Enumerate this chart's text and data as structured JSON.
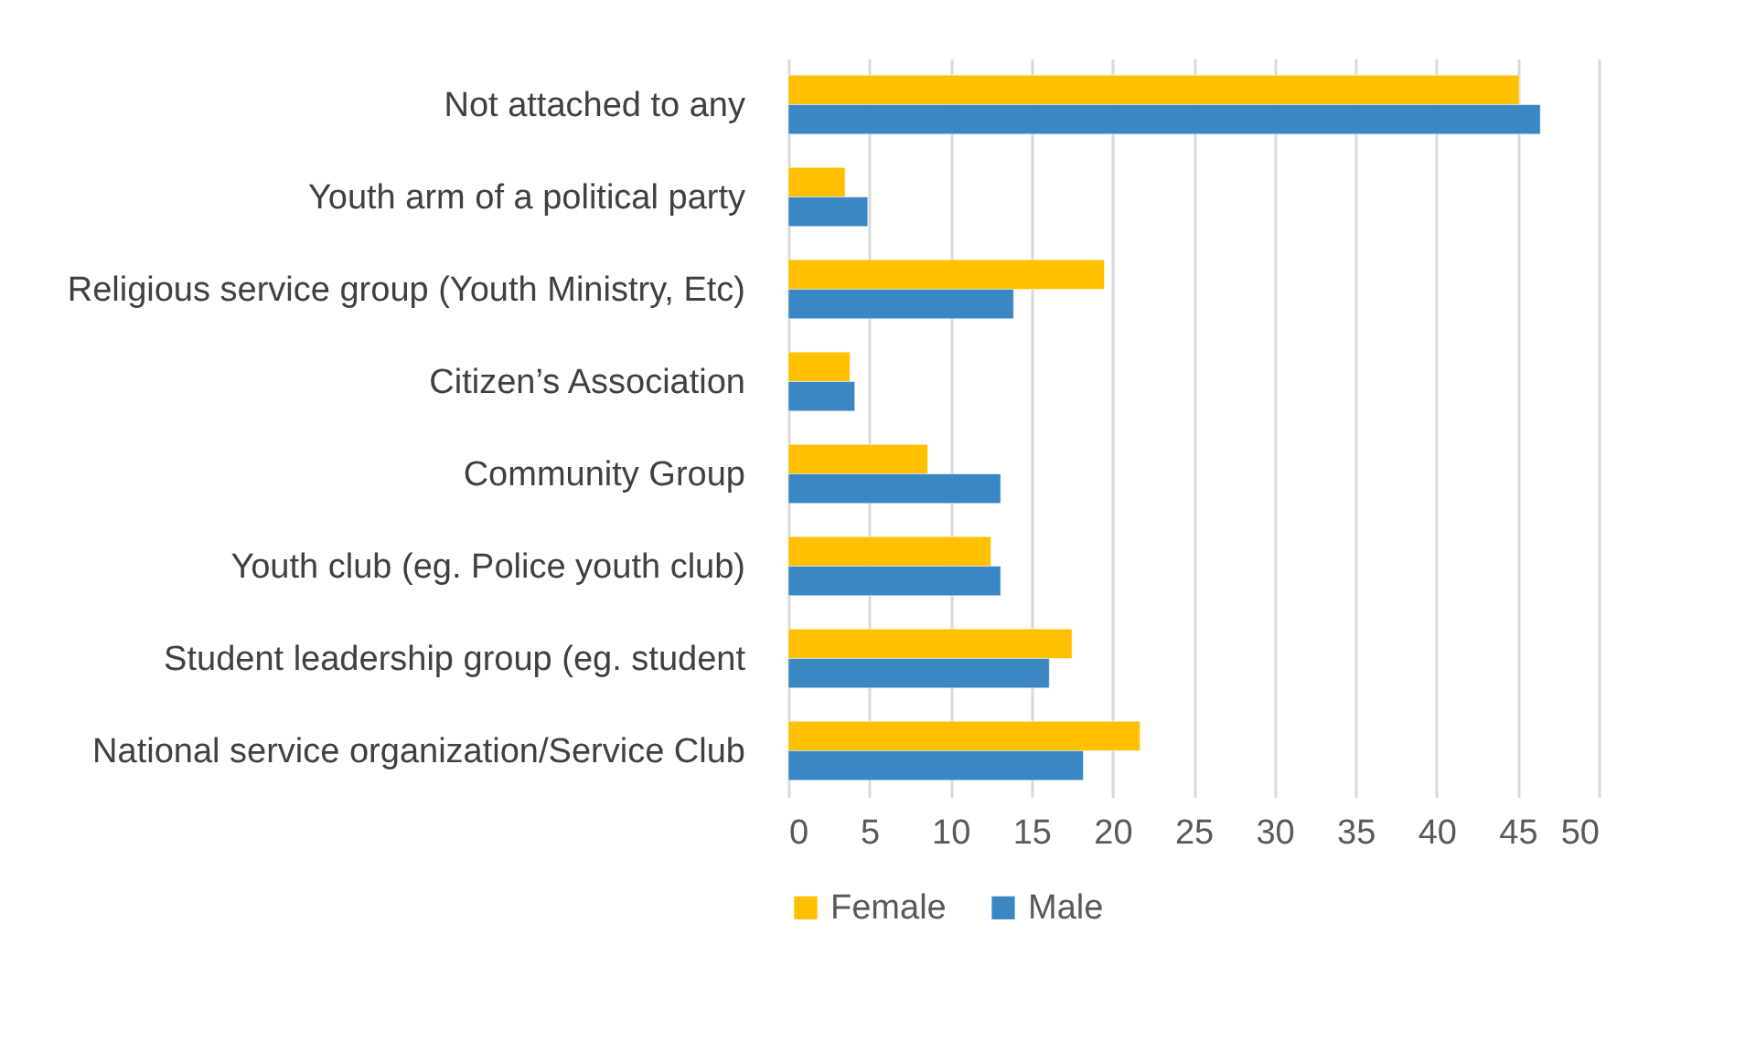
{
  "chart_data": {
    "type": "bar",
    "orientation": "horizontal",
    "categories": [
      "Not attached to any",
      "Youth arm of a political party",
      "Religious service group (Youth Ministry, Etc)",
      "Citizen’s Association",
      "Community Group",
      "Youth club (eg. Police youth club)",
      "Student leadership group (eg. student",
      "National service organization/Service Club"
    ],
    "series": [
      {
        "name": "Female",
        "color": "#ffc000",
        "values": [
          45.1,
          3.5,
          19.5,
          3.8,
          8.6,
          12.5,
          17.5,
          21.7
        ]
      },
      {
        "name": "Male",
        "color": "#3a87c4",
        "values": [
          46.4,
          4.9,
          13.9,
          4.1,
          13.1,
          13.1,
          16.1,
          18.2
        ]
      }
    ],
    "xlim": [
      0,
      50
    ],
    "xticks": [
      0,
      5,
      10,
      15,
      20,
      25,
      30,
      35,
      40,
      45,
      50
    ],
    "grid": "x",
    "legend": "bottom"
  }
}
